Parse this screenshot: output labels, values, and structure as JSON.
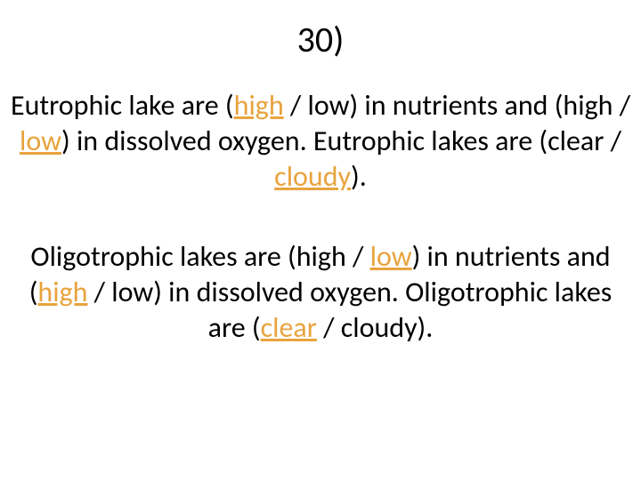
{
  "colors": {
    "text": "#000000",
    "highlight": "#e8a33d",
    "background": "#ffffff"
  },
  "typography": {
    "title_fontsize": 40,
    "body_fontsize": 32,
    "font_family": "Calibri, Arial, sans-serif"
  },
  "title": "30)",
  "p1": {
    "t1": "Eutrophic lake are (",
    "h1": "high",
    "t2": " / low) in nutrients and (high / ",
    "h2": "low",
    "t3": ") in dissolved oxygen.  Eutrophic lakes are (clear / ",
    "h3": "cloudy",
    "t4": ")."
  },
  "p2": {
    "t1": "Oligotrophic lakes are (high / ",
    "h1": "low",
    "t2": ") in nutrients and (",
    "h2": "high",
    "t3": " / low) in dissolved oxygen.  Oligotrophic lakes are (",
    "h3": "clear",
    "t4": " / cloudy)."
  }
}
